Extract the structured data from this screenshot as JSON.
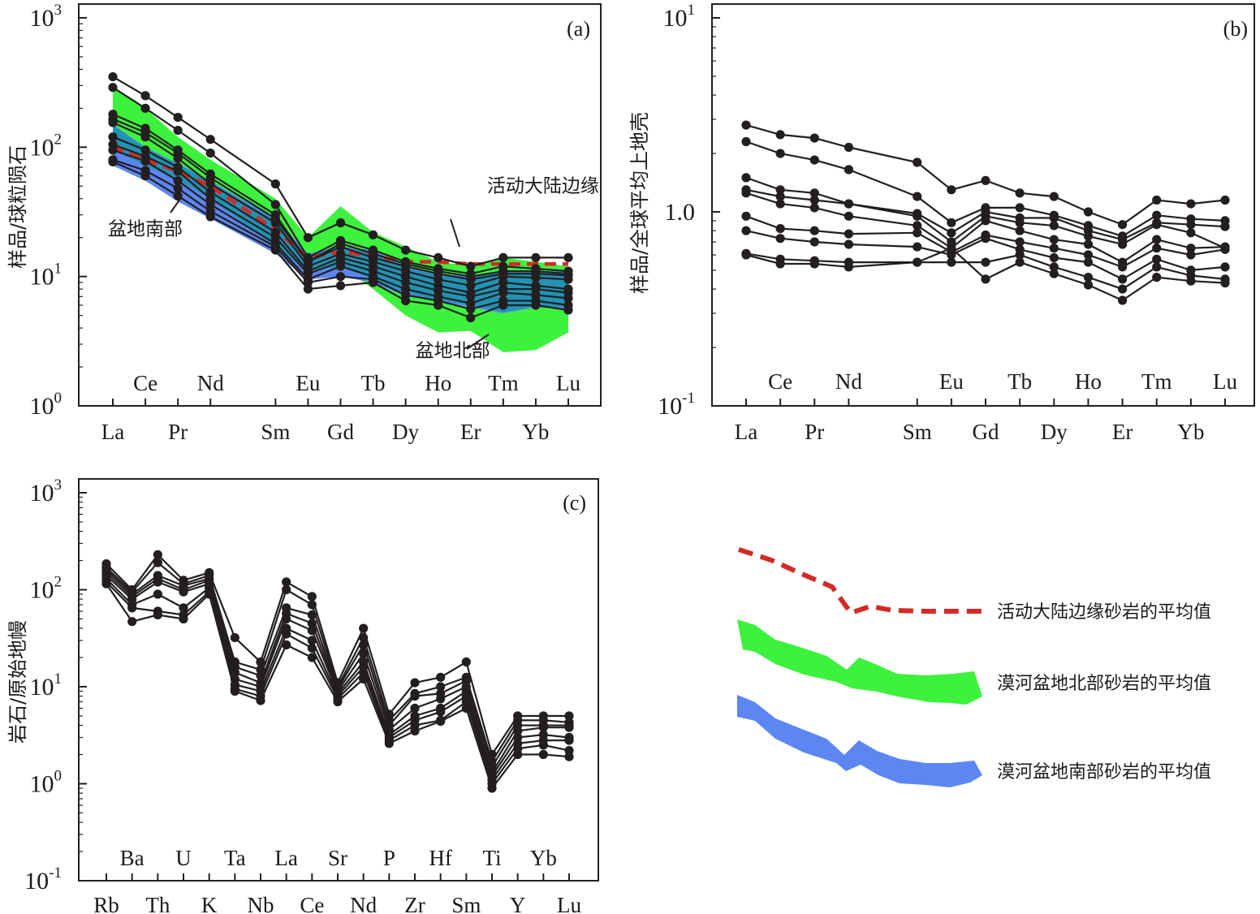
{
  "colors": {
    "sample_line": "#231f20",
    "active_margin_line": "#d42a26",
    "north_band": "#3df23d",
    "south_band": "#5c86f2",
    "overlap_band": "#2193b5"
  },
  "legend": [
    {
      "label": "活动大陆边缘砂岩的平均值",
      "kind": "dashed-line",
      "color": "#d42a26"
    },
    {
      "label": "漠河盆地北部砂岩的平均值",
      "kind": "band",
      "color": "#3df23d"
    },
    {
      "label": "漠河盆地南部砂岩的平均值",
      "kind": "band",
      "color": "#5c86f2"
    }
  ],
  "chart_data": [
    {
      "id": "a",
      "type": "line",
      "panel_label": "(a)",
      "ylabel": "样品/球粒陨石",
      "yscale": "log",
      "ylim": [
        1,
        1000
      ],
      "yticks": [
        {
          "value": 1,
          "base": "10",
          "exp": "0"
        },
        {
          "value": 10,
          "base": "10",
          "exp": "1"
        },
        {
          "value": 100,
          "base": "10",
          "exp": "2"
        },
        {
          "value": 1000,
          "base": "10",
          "exp": "3"
        }
      ],
      "x": [
        "La",
        "Ce",
        "Pr",
        "Nd",
        "Sm",
        "Eu",
        "Gd",
        "Tb",
        "Dy",
        "Ho",
        "Er",
        "Tm",
        "Yb",
        "Lu"
      ],
      "x_index": [
        0,
        1,
        2,
        3,
        5,
        6,
        7,
        8,
        9,
        10,
        11,
        12,
        13,
        14
      ],
      "x_index_max": 14,
      "xticks_lower": [
        "La",
        "Pr",
        "Sm",
        "Gd",
        "Dy",
        "Er",
        "Yb"
      ],
      "xticks_upper": [
        "Ce",
        "Nd",
        "Eu",
        "Tb",
        "Ho",
        "Tm",
        "Lu"
      ],
      "annotations": [
        {
          "text": "活动大陆边缘",
          "xi": 11.5,
          "y": 45
        },
        {
          "text": "盆地南部",
          "xi": 0.3,
          "y": 21
        },
        {
          "text": "盆地北部",
          "xi": 9.3,
          "y": 2.4
        }
      ],
      "bands": [
        {
          "name": "north",
          "color": "#3df23d",
          "upper": [
            290,
            200,
            120,
            80,
            40,
            20,
            35,
            22,
            17,
            13,
            12,
            14,
            13,
            12
          ],
          "lower": [
            100,
            75,
            55,
            40,
            18,
            11,
            12,
            8,
            5,
            3.7,
            3.8,
            2.6,
            2.7,
            3.7
          ]
        },
        {
          "name": "south",
          "color": "#5c86f2",
          "upper": [
            150,
            100,
            75,
            55,
            28,
            15,
            17,
            16,
            12,
            10.5,
            10,
            11,
            11,
            11
          ],
          "lower": [
            72,
            55,
            38,
            28,
            15,
            9.5,
            10,
            9,
            7,
            6.5,
            5.8,
            5.2,
            5.8,
            5.6
          ]
        },
        {
          "name": "overlap",
          "color": "#2193b5",
          "upper": [
            148,
            98,
            74,
            54,
            27,
            14.5,
            16.5,
            15.5,
            11.5,
            10.3,
            9.8,
            10.8,
            10.8,
            10.8
          ],
          "lower": [
            95,
            72,
            56,
            40,
            17,
            11,
            12,
            9.5,
            7.5,
            6.6,
            6,
            5.3,
            5.9,
            5.8
          ]
        }
      ],
      "reference_series": [
        {
          "name": "活动大陆边缘",
          "color": "#d42a26",
          "style": "dashed",
          "values": [
            100,
            80,
            65,
            50,
            23,
            14,
            15.5,
            14.5,
            13,
            13,
            12.5,
            12.5,
            12.5,
            12.5
          ]
        }
      ],
      "series": [
        {
          "values": [
            350,
            250,
            170,
            115,
            52,
            20,
            26,
            21,
            16,
            14,
            12,
            14,
            14,
            14
          ]
        },
        {
          "values": [
            290,
            200,
            135,
            90,
            36,
            14,
            19,
            16,
            13,
            11.5,
            10.5,
            12,
            11.5,
            11
          ]
        },
        {
          "values": [
            180,
            140,
            95,
            62,
            30,
            13,
            18,
            15,
            12.5,
            11,
            10,
            11,
            11,
            10.5
          ]
        },
        {
          "values": [
            165,
            130,
            90,
            58,
            28,
            13,
            17,
            14,
            12,
            10.5,
            9.5,
            10.5,
            10.5,
            10.2
          ]
        },
        {
          "values": [
            155,
            120,
            82,
            52,
            26,
            12,
            15,
            13,
            11,
            9.5,
            8.5,
            10,
            9.8,
            9.5
          ]
        },
        {
          "values": [
            120,
            95,
            70,
            45,
            22,
            11,
            14,
            12,
            10,
            8.5,
            7.5,
            9,
            8.5,
            8
          ]
        },
        {
          "values": [
            105,
            85,
            65,
            40,
            20,
            10.5,
            13,
            11,
            9,
            7.8,
            7,
            8,
            8,
            7.5
          ]
        },
        {
          "values": [
            95,
            78,
            55,
            36,
            18,
            9.5,
            12,
            10,
            8,
            7,
            6.2,
            7.5,
            7.2,
            6.8
          ]
        },
        {
          "values": [
            80,
            66,
            48,
            32,
            17,
            9,
            10,
            9.5,
            7.2,
            6.5,
            5.6,
            6.5,
            6.5,
            6
          ]
        },
        {
          "values": [
            77,
            60,
            42,
            29,
            16,
            8,
            8.5,
            9,
            6.5,
            6,
            4.8,
            6,
            6,
            5.5
          ]
        }
      ]
    },
    {
      "id": "b",
      "type": "line",
      "panel_label": "(b)",
      "ylabel": "样品/全球平均上地壳",
      "yscale": "log",
      "ylim": [
        0.1,
        10
      ],
      "yticks": [
        {
          "value": 0.1,
          "base": "10",
          "exp": "-1"
        },
        {
          "value": 1,
          "base": "",
          "exp": "",
          "text": "1.0"
        },
        {
          "value": 10,
          "base": "10",
          "exp": "1"
        }
      ],
      "x": [
        "La",
        "Ce",
        "Pr",
        "Nd",
        "Sm",
        "Eu",
        "Gd",
        "Tb",
        "Dy",
        "Ho",
        "Er",
        "Tm",
        "Yb",
        "Lu"
      ],
      "x_index": [
        0,
        1,
        2,
        3,
        5,
        6,
        7,
        8,
        9,
        10,
        11,
        12,
        13,
        14
      ],
      "x_index_max": 14,
      "xticks_lower": [
        "La",
        "Pr",
        "Sm",
        "Gd",
        "Dy",
        "Er",
        "Yb"
      ],
      "xticks_upper": [
        "Ce",
        "Nd",
        "Eu",
        "Tb",
        "Ho",
        "Tm",
        "Lu"
      ],
      "series": [
        {
          "values": [
            2.8,
            2.5,
            2.4,
            2.15,
            1.8,
            1.3,
            1.45,
            1.25,
            1.2,
            1.0,
            0.86,
            1.15,
            1.1,
            1.15
          ]
        },
        {
          "values": [
            2.3,
            2.0,
            1.85,
            1.65,
            1.2,
            0.88,
            1.05,
            1.05,
            0.96,
            0.85,
            0.75,
            0.96,
            0.92,
            0.9
          ]
        },
        {
          "values": [
            1.5,
            1.3,
            1.25,
            1.1,
            0.98,
            0.78,
            1.0,
            0.93,
            0.93,
            0.8,
            0.72,
            0.88,
            0.86,
            0.84
          ]
        },
        {
          "values": [
            1.3,
            1.2,
            1.15,
            1.1,
            0.95,
            0.7,
            0.95,
            0.88,
            0.85,
            0.75,
            0.68,
            0.86,
            0.78,
            0.65
          ]
        },
        {
          "values": [
            1.25,
            1.1,
            1.05,
            0.95,
            0.85,
            0.65,
            0.9,
            0.8,
            0.72,
            0.68,
            0.55,
            0.72,
            0.65,
            0.66
          ]
        },
        {
          "values": [
            0.95,
            0.82,
            0.8,
            0.77,
            0.78,
            0.62,
            0.76,
            0.7,
            0.65,
            0.6,
            0.52,
            0.65,
            0.6,
            0.64
          ]
        },
        {
          "values": [
            0.8,
            0.73,
            0.7,
            0.68,
            0.66,
            0.6,
            0.73,
            0.64,
            0.58,
            0.55,
            0.45,
            0.57,
            0.5,
            0.52
          ]
        },
        {
          "values": [
            0.61,
            0.57,
            0.56,
            0.55,
            0.55,
            0.55,
            0.55,
            0.6,
            0.52,
            0.46,
            0.4,
            0.52,
            0.47,
            0.45
          ]
        },
        {
          "values": [
            0.6,
            0.54,
            0.54,
            0.52,
            0.55,
            0.65,
            0.45,
            0.55,
            0.48,
            0.42,
            0.35,
            0.46,
            0.44,
            0.43
          ]
        }
      ]
    },
    {
      "id": "c",
      "type": "line",
      "panel_label": "(c)",
      "ylabel": "岩石/原始地幔",
      "yscale": "log",
      "ylim": [
        0.1,
        1000
      ],
      "yticks": [
        {
          "value": 0.1,
          "base": "10",
          "exp": "-1"
        },
        {
          "value": 1,
          "base": "10",
          "exp": "0"
        },
        {
          "value": 10,
          "base": "10",
          "exp": "1"
        },
        {
          "value": 100,
          "base": "10",
          "exp": "2"
        },
        {
          "value": 1000,
          "base": "10",
          "exp": "3"
        }
      ],
      "x": [
        "Rb",
        "Ba",
        "Th",
        "U",
        "K",
        "Ta",
        "Nb",
        "La",
        "Ce",
        "Sr",
        "Nd",
        "P",
        "Zr",
        "Hf",
        "Sm",
        "Ti",
        "Y",
        "Yb",
        "Lu"
      ],
      "x_index": [
        0,
        1,
        2,
        3,
        4,
        5,
        6,
        7,
        8,
        9,
        10,
        11,
        12,
        13,
        14,
        15,
        16,
        17,
        18
      ],
      "x_index_max": 18,
      "xticks_lower": [
        "Rb",
        "Th",
        "K",
        "Nb",
        "Ce",
        "Nd",
        "Zr",
        "Sm",
        "Y",
        "Lu"
      ],
      "xticks_upper": [
        "Ba",
        "U",
        "Ta",
        "La",
        "Sr",
        "P",
        "Hf",
        "Ti",
        "Yb"
      ],
      "series": [
        {
          "values": [
            185,
            100,
            230,
            125,
            150,
            32,
            18,
            120,
            85,
            11,
            40,
            5.2,
            11,
            12.5,
            18,
            2.0,
            5.0,
            5.0,
            5.0
          ]
        },
        {
          "values": [
            170,
            95,
            190,
            115,
            140,
            18,
            15,
            100,
            70,
            10,
            32,
            4.5,
            8.5,
            10,
            12.5,
            1.7,
            4.5,
            4.5,
            4.3
          ]
        },
        {
          "values": [
            160,
            90,
            140,
            110,
            130,
            16,
            13,
            65,
            55,
            9.5,
            27,
            4.0,
            8.0,
            8.5,
            11.5,
            1.5,
            4.0,
            4.0,
            4.0
          ]
        },
        {
          "values": [
            150,
            85,
            130,
            100,
            125,
            14,
            11,
            57,
            45,
            9.0,
            22,
            3.6,
            6.0,
            7.5,
            10,
            1.3,
            3.5,
            3.8,
            3.8
          ]
        },
        {
          "values": [
            140,
            80,
            120,
            95,
            115,
            12,
            10,
            50,
            38,
            8.5,
            18,
            3.2,
            5.0,
            6.0,
            9,
            1.2,
            3.0,
            3.2,
            3.0
          ]
        },
        {
          "values": [
            130,
            70,
            90,
            65,
            105,
            10.5,
            9,
            40,
            30,
            8.0,
            16,
            3.0,
            4.5,
            5.5,
            8,
            1.1,
            2.6,
            2.8,
            2.8
          ]
        },
        {
          "values": [
            120,
            65,
            60,
            55,
            95,
            9.5,
            8,
            35,
            25,
            7.5,
            14,
            2.8,
            4.0,
            4.5,
            7,
            1.0,
            2.3,
            2.5,
            2.2
          ]
        },
        {
          "values": [
            115,
            47,
            55,
            50,
            90,
            9.0,
            7.2,
            27,
            20,
            7.0,
            12,
            2.6,
            3.5,
            4.4,
            6,
            0.9,
            2.0,
            2.0,
            1.9
          ]
        }
      ]
    }
  ]
}
